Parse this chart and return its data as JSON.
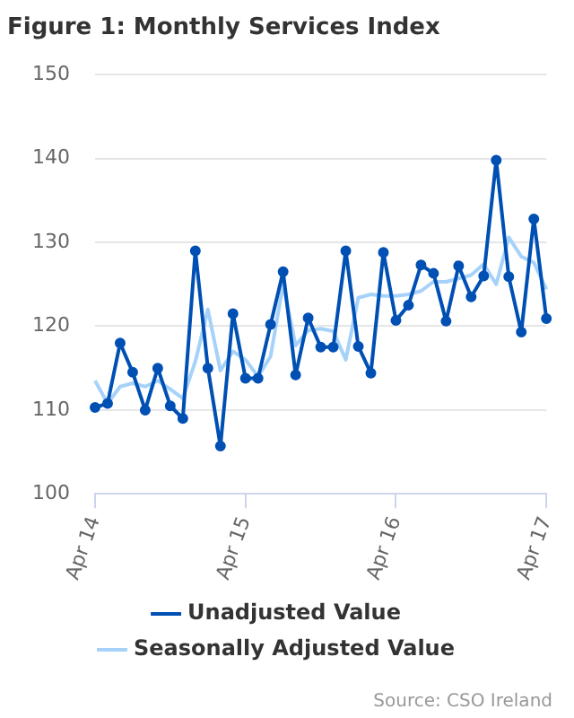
{
  "chart_data": {
    "type": "line",
    "title": "Figure 1: Monthly Services Index",
    "categories": [
      "Apr 14",
      null,
      null,
      null,
      null,
      null,
      null,
      null,
      null,
      null,
      null,
      null,
      "Apr 15",
      null,
      null,
      null,
      null,
      null,
      null,
      null,
      null,
      null,
      null,
      null,
      "Apr 16",
      null,
      null,
      null,
      null,
      null,
      null,
      null,
      null,
      null,
      null,
      null,
      "Apr 17"
    ],
    "series": [
      {
        "name": "Unadjusted Value",
        "color": "#0050b4",
        "marker": "circle",
        "values": [
          110.3,
          110.8,
          118,
          114.5,
          110,
          115,
          110.5,
          109,
          129,
          115,
          105.7,
          121.5,
          113.8,
          113.8,
          120.2,
          126.5,
          114.2,
          121,
          117.5,
          117.5,
          129,
          117.6,
          114.4,
          128.8,
          120.7,
          122.5,
          127.3,
          126.3,
          120.6,
          127.2,
          123.5,
          126,
          139.8,
          125.9,
          119.3,
          132.8,
          120.9
        ]
      },
      {
        "name": "Seasonally Adjusted Value",
        "color": "#a6d2fa",
        "marker": "none",
        "values": [
          113.5,
          110.8,
          112.8,
          113.2,
          112.8,
          113.5,
          112.5,
          111.4,
          115.8,
          122,
          114.7,
          117,
          116,
          114,
          116.4,
          125,
          117.7,
          119.5,
          119.7,
          119.4,
          116,
          123.4,
          123.8,
          123.6,
          123.6,
          123.8,
          124.2,
          125.3,
          125.3,
          125.7,
          126.1,
          127.4,
          125,
          130.6,
          128.3,
          127.6,
          124.4
        ]
      }
    ],
    "ylim": [
      100,
      150
    ],
    "yticks": [
      100,
      110,
      120,
      130,
      140,
      150
    ],
    "grid": "y",
    "legend": "bottom",
    "annotations": [
      "Source: CSO Ireland"
    ]
  }
}
